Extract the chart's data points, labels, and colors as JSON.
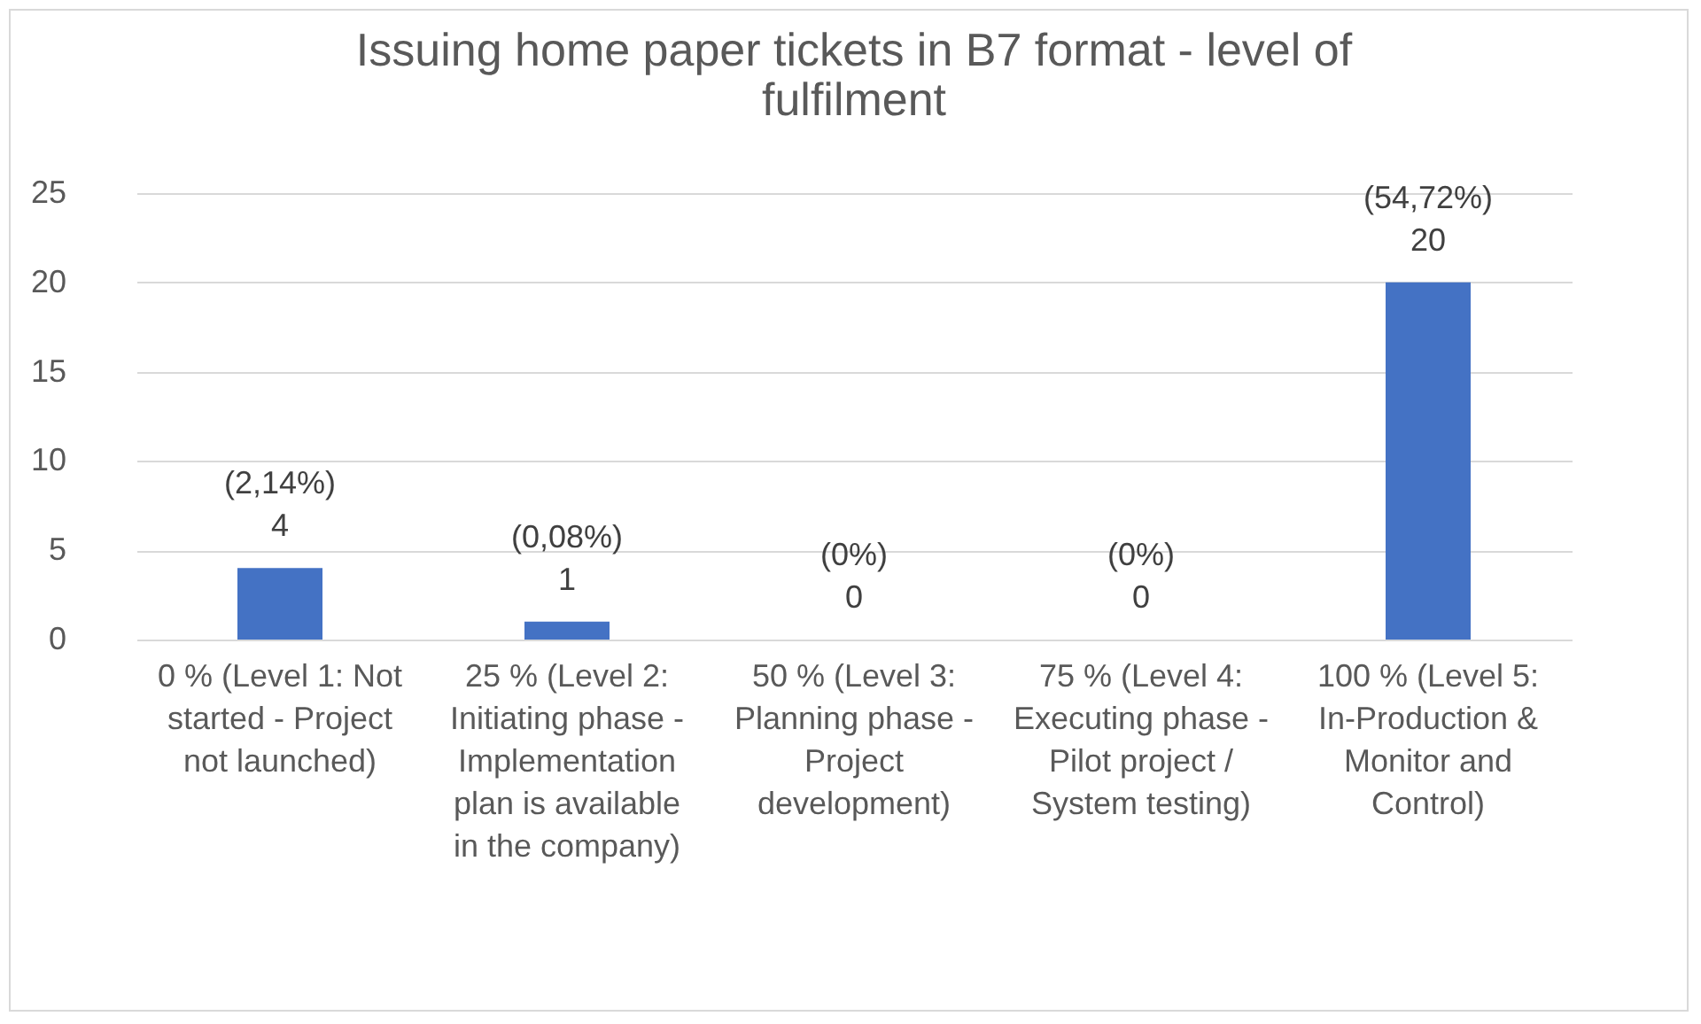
{
  "chart_data": {
    "type": "bar",
    "title": "Issuing home paper tickets in B7 format - level of fulfilment",
    "categories": [
      "0 % (Level 1: Not started - Project not launched)",
      "25 % (Level 2: Initiating phase - Implementation plan is available in the company)",
      "50 % (Level 3: Planning phase - Project development)",
      "75 % (Level 4: Executing phase - Pilot project / System testing)",
      "100 % (Level 5: In-Production & Monitor and Control)"
    ],
    "values": [
      4,
      1,
      0,
      0,
      20
    ],
    "value_labels": [
      "(2,14%)\n4",
      "(0,08%)\n1",
      "(0%)\n0",
      "(0%)\n0",
      "(54,72%)\n20"
    ],
    "color": "#4472c4",
    "ylim": [
      0,
      25
    ],
    "yticks": [
      0,
      5,
      10,
      15,
      20,
      25
    ],
    "grid": "y"
  }
}
